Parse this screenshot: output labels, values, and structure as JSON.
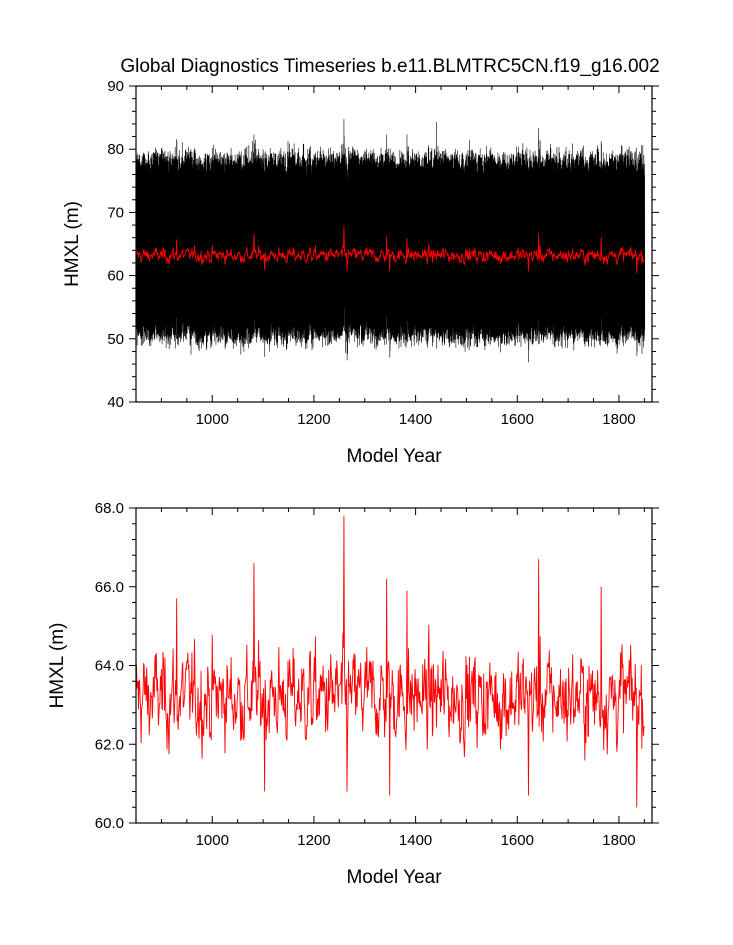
{
  "figure": {
    "title": "Global Diagnostics Timeseries b.e11.BLMTRC5CN.f19_g16.002"
  },
  "colors": {
    "monthly_series": "#000000",
    "annual_series": "#ff0000",
    "background": "#ffffff"
  },
  "chart_data": [
    {
      "type": "line",
      "title": "Global Diagnostics Timeseries b.e11.BLMTRC5CN.f19_g16.002",
      "xlabel": "Model Year",
      "ylabel": "HMXL (m)",
      "xlim": [
        850,
        1865
      ],
      "ylim": [
        40,
        90
      ],
      "xticks": [
        1000,
        1200,
        1400,
        1600,
        1800
      ],
      "xtick_labels": [
        "1000",
        "1200",
        "1400",
        "1600",
        "1800"
      ],
      "yticks": [
        40,
        50,
        60,
        70,
        80,
        90
      ],
      "ytick_labels": [
        "40",
        "50",
        "60",
        "70",
        "80",
        "90"
      ],
      "grid": false,
      "legend": "none",
      "series": [
        {
          "color": "#000000",
          "description_of_values": "monthly global mean HMXL, seasonal cycle between about 50 and 79 m",
          "x_start": 850,
          "x_end": 1850,
          "seasonal_min": 50,
          "seasonal_max": 79,
          "noted_peaks": [
            {
              "x": 1259,
              "y": 84.8
            },
            {
              "x": 1441,
              "y": 84.3
            },
            {
              "x": 1343,
              "y": 82.3
            },
            {
              "x": 1085,
              "y": 81.5
            }
          ],
          "noted_troughs": [
            {
              "x": 958,
              "y": 47.5
            },
            {
              "x": 1262,
              "y": 47.8
            }
          ]
        },
        {
          "color": "#ff0000",
          "description_of_values": "annual mean HMXL",
          "x_start": 850,
          "x_end": 1850,
          "mean": 63.2,
          "noted_peaks": [
            {
              "x": 1259,
              "y": 67.8
            },
            {
              "x": 1082,
              "y": 66.6
            },
            {
              "x": 1642,
              "y": 66.7
            },
            {
              "x": 1343,
              "y": 66.2
            }
          ]
        }
      ]
    },
    {
      "type": "line",
      "title": "",
      "xlabel": "Model Year",
      "ylabel": "HMXL (m)",
      "xlim": [
        850,
        1865
      ],
      "ylim": [
        60.0,
        68.0
      ],
      "xticks": [
        1000,
        1200,
        1400,
        1600,
        1800
      ],
      "xtick_labels": [
        "1000",
        "1200",
        "1400",
        "1600",
        "1800"
      ],
      "yticks": [
        60.0,
        62.0,
        64.0,
        66.0,
        68.0
      ],
      "ytick_labels": [
        "60.0",
        "62.0",
        "64.0",
        "66.0",
        "68.0"
      ],
      "grid": false,
      "legend": "none",
      "series": [
        {
          "color": "#ff0000",
          "description_of_values": "annual mean HMXL",
          "x_start": 850,
          "x_end": 1850,
          "mean": 63.2,
          "noted_peaks": [
            {
              "x": 930,
              "y": 65.7
            },
            {
              "x": 1082,
              "y": 66.6
            },
            {
              "x": 1259,
              "y": 67.8
            },
            {
              "x": 1343,
              "y": 66.2
            },
            {
              "x": 1383,
              "y": 65.9
            },
            {
              "x": 1642,
              "y": 66.7
            },
            {
              "x": 1765,
              "y": 66.0
            }
          ],
          "noted_troughs": [
            {
              "x": 1103,
              "y": 60.8
            },
            {
              "x": 1265,
              "y": 60.8
            },
            {
              "x": 1349,
              "y": 60.7
            },
            {
              "x": 1622,
              "y": 60.7
            },
            {
              "x": 1835,
              "y": 60.4
            }
          ]
        }
      ]
    }
  ]
}
